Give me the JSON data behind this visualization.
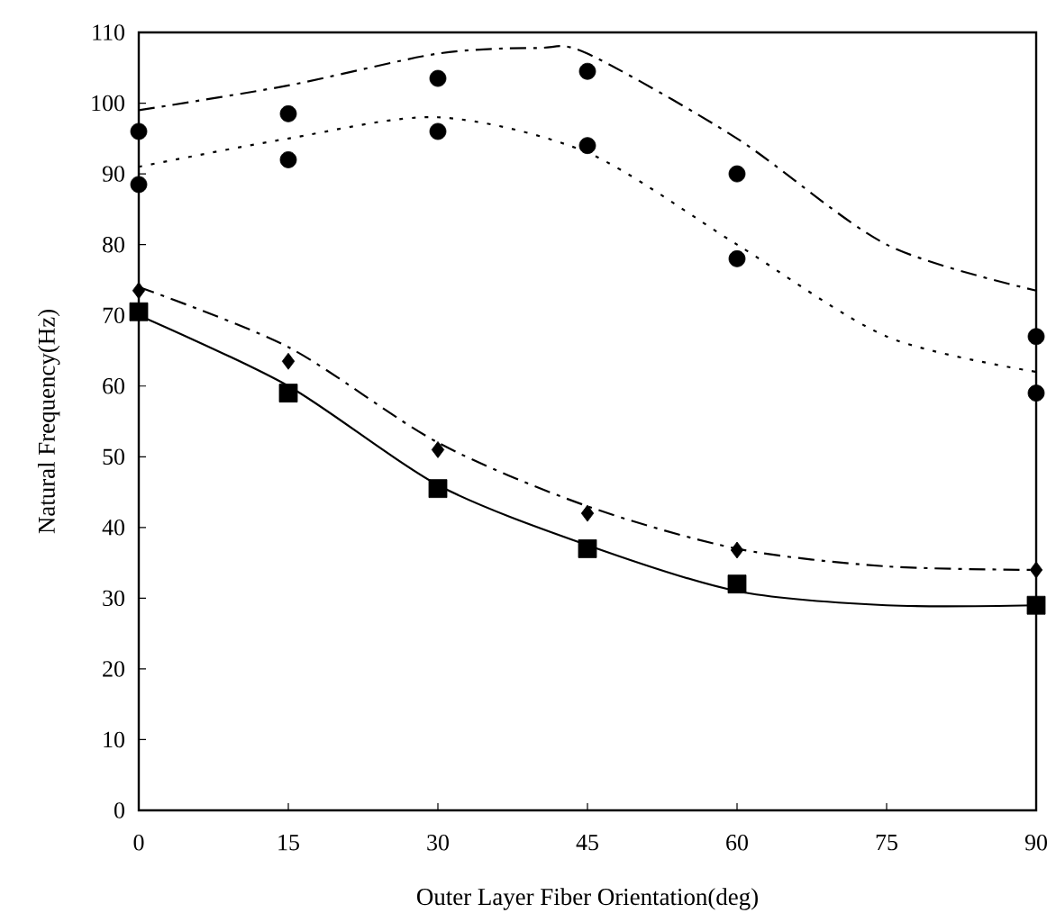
{
  "chart_data": {
    "type": "scatter",
    "xlabel": "Outer Layer Fiber Orientation(deg)",
    "ylabel": "Natural Frequency(Hz)",
    "xlim": [
      0,
      90
    ],
    "ylim": [
      0,
      110
    ],
    "xticks": [
      0,
      15,
      30,
      45,
      60,
      75,
      90
    ],
    "yticks": [
      0,
      10,
      20,
      30,
      40,
      50,
      60,
      70,
      80,
      90,
      100,
      110
    ],
    "grid": false,
    "series": [
      {
        "marker": "circle",
        "color": "#000000",
        "x": [
          0,
          15,
          30,
          45,
          60,
          90
        ],
        "values": [
          96,
          98.5,
          103.5,
          104.5,
          90,
          67
        ]
      },
      {
        "marker": "circle",
        "color": "#000000",
        "x": [
          0,
          15,
          30,
          45,
          60,
          90
        ],
        "values": [
          88.5,
          92,
          96,
          94,
          78,
          59
        ]
      },
      {
        "marker": "diamond",
        "color": "#000000",
        "x": [
          0,
          15,
          30,
          45,
          60,
          90
        ],
        "values": [
          73.5,
          63.5,
          51,
          42,
          36.8,
          34
        ]
      },
      {
        "marker": "square",
        "color": "#000000",
        "x": [
          0,
          15,
          30,
          45,
          60,
          90
        ],
        "values": [
          70.5,
          59,
          45.5,
          37,
          32,
          29
        ]
      },
      {
        "type": "line",
        "marker": "none",
        "line_style": "dashdot",
        "color": "#000000",
        "x": [
          0,
          15,
          30,
          40,
          45,
          60,
          75,
          90
        ],
        "values": [
          99,
          102.5,
          107,
          107.8,
          107,
          95,
          80,
          73.5
        ]
      },
      {
        "type": "line",
        "marker": "none",
        "line_style": "dotted",
        "color": "#000000",
        "x": [
          0,
          15,
          30,
          45,
          60,
          75,
          90
        ],
        "values": [
          91,
          95,
          98,
          93,
          80,
          67,
          62
        ]
      },
      {
        "type": "line",
        "marker": "none",
        "line_style": "dashdot",
        "color": "#000000",
        "x": [
          0,
          15,
          30,
          45,
          60,
          75,
          90
        ],
        "values": [
          74,
          65.5,
          52,
          43,
          37,
          34.5,
          34
        ]
      },
      {
        "type": "line",
        "marker": "none",
        "line_style": "solid",
        "color": "#000000",
        "x": [
          0,
          15,
          30,
          45,
          60,
          75,
          90
        ],
        "values": [
          70,
          60,
          46,
          37.5,
          31,
          29,
          29
        ]
      }
    ]
  }
}
